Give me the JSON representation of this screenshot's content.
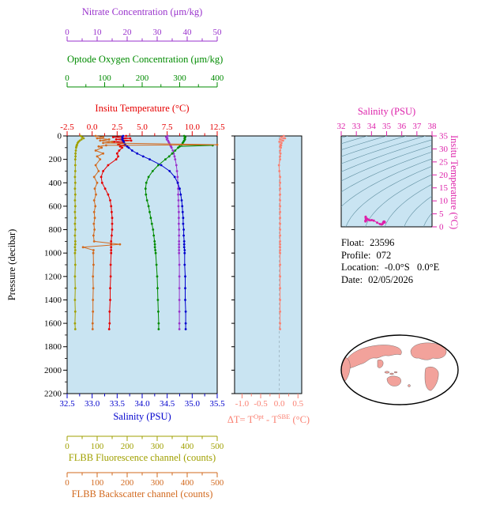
{
  "colors": {
    "panel_bg": "#c9e4f2",
    "contour": "#5f8fa0",
    "map_land": "#f2a29b",
    "map_outline": "#000000"
  },
  "info": {
    "lines": [
      {
        "label": "Float:",
        "value": "23596"
      },
      {
        "label": "Profile:",
        "value": "072"
      },
      {
        "label": "Location:",
        "value": "-0.0°S   0.0°E"
      },
      {
        "label": "Date:",
        "value": "02/05/2026"
      }
    ]
  },
  "chart_data": {
    "type": "line",
    "profile_plot": {
      "ylabel": "Pressure (decibar)",
      "ylim": [
        0,
        2200
      ],
      "pressure_ticks": [
        "0",
        "200",
        "400",
        "600",
        "800",
        "1000",
        "1200",
        "1400",
        "1600",
        "1800",
        "2000",
        "2200"
      ],
      "pressure_levels": [
        0,
        10,
        20,
        30,
        40,
        50,
        60,
        75,
        80,
        90,
        100,
        125,
        150,
        175,
        200,
        250,
        300,
        350,
        400,
        450,
        500,
        550,
        600,
        650,
        700,
        750,
        800,
        850,
        900,
        925,
        950,
        975,
        1000,
        1100,
        1200,
        1300,
        1400,
        1500,
        1600,
        1650
      ],
      "series": [
        {
          "name": "nitrate",
          "label": "Nitrate Concentration (μm/kg)",
          "color": "#9932cc",
          "range": [
            0,
            50
          ],
          "ticks": [
            "0",
            "10",
            "20",
            "30",
            "40",
            "50"
          ],
          "values": [
            33.5,
            33.0,
            33.4,
            33.2,
            33.6,
            33.8,
            34.0,
            34.3,
            34.4,
            34.6,
            34.8,
            35.2,
            35.5,
            35.8,
            36.0,
            36.4,
            36.6,
            36.8,
            36.9,
            37.0,
            37.0,
            37.1,
            37.1,
            37.2,
            37.2,
            37.2,
            37.3,
            37.3,
            37.3,
            37.3,
            37.3,
            37.3,
            37.3,
            37.4,
            37.4,
            37.4,
            37.4,
            37.4,
            37.4,
            37.4
          ]
        },
        {
          "name": "oxygen",
          "label": "Optode Oxygen Concentration (μm/kg)",
          "color": "#008b00",
          "range": [
            0,
            400
          ],
          "ticks": [
            "0",
            "100",
            "200",
            "300",
            "400"
          ],
          "values": [
            312,
            315,
            313,
            314,
            312,
            310,
            308,
            305,
            388,
            300,
            296,
            288,
            280,
            272,
            262,
            243,
            228,
            217,
            211,
            209,
            210,
            213,
            217,
            220,
            223,
            226,
            229,
            231,
            233,
            234,
            234,
            235,
            236,
            238,
            240,
            241,
            242,
            243,
            244,
            244
          ]
        },
        {
          "name": "temperature",
          "label": "Insitu Temperature (°C)",
          "color": "#e60000",
          "range": [
            -2.5,
            12.5
          ],
          "ticks": [
            "-2.5",
            "0.0",
            "2.5",
            "5.0",
            "7.5",
            "10.0",
            "12.5"
          ],
          "values": [
            3.4,
            2.1,
            3.8,
            2.4,
            3.9,
            2.2,
            3.0,
            2.6,
            3.2,
            2.8,
            3.0,
            2.7,
            2.5,
            2.6,
            2.4,
            1.6,
            1.1,
            0.9,
            1.0,
            1.3,
            1.6,
            1.8,
            1.9,
            1.95,
            2.0,
            2.0,
            2.0,
            1.95,
            1.9,
            1.9,
            1.9,
            1.9,
            1.9,
            1.85,
            1.85,
            1.8,
            1.8,
            1.75,
            1.75,
            1.7
          ]
        },
        {
          "name": "salinity",
          "label": "Salinity (PSU)",
          "color": "#0000cd",
          "range": [
            32.5,
            35.5
          ],
          "ticks": [
            "32.5",
            "33.0",
            "33.5",
            "34.0",
            "34.5",
            "35.0",
            "35.5"
          ],
          "values": [
            33.62,
            33.6,
            33.61,
            33.6,
            33.62,
            33.63,
            33.64,
            33.66,
            33.67,
            33.7,
            33.73,
            33.8,
            33.9,
            34.02,
            34.15,
            34.38,
            34.55,
            34.65,
            34.71,
            34.75,
            34.77,
            34.79,
            34.8,
            34.81,
            34.82,
            34.82,
            34.83,
            34.83,
            34.84,
            34.84,
            34.84,
            34.85,
            34.85,
            34.85,
            34.86,
            34.86,
            34.86,
            34.87,
            34.87,
            34.87
          ]
        },
        {
          "name": "fluorescence",
          "label": "FLBB Fluorescence channel (counts)",
          "color": "#a0a000",
          "range": [
            0,
            500
          ],
          "ticks": [
            "0",
            "100",
            "200",
            "300",
            "400",
            "500"
          ],
          "values": [
            45,
            50,
            55,
            48,
            42,
            38,
            35,
            33,
            32,
            31,
            30,
            29,
            28,
            28,
            27,
            27,
            27,
            26,
            27,
            26,
            27,
            26,
            27,
            26,
            27,
            26,
            27,
            26,
            27,
            27,
            26,
            27,
            26,
            27,
            26,
            27,
            26,
            27,
            26,
            27
          ]
        },
        {
          "name": "backscatter",
          "label": "FLBB Backscatter channel (counts)",
          "color": "#d2691e",
          "range": [
            0,
            500
          ],
          "ticks": [
            "0",
            "100",
            "200",
            "300",
            "400",
            "500"
          ],
          "values": [
            95,
            120,
            100,
            140,
            110,
            150,
            120,
            500,
            130,
            105,
            115,
            95,
            120,
            100,
            110,
            95,
            105,
            90,
            100,
            92,
            96,
            90,
            94,
            90,
            92,
            89,
            91,
            88,
            90,
            176,
            53,
            88,
            87,
            88,
            86,
            87,
            86,
            86,
            85,
            85
          ]
        }
      ]
    },
    "delta_plot": {
      "label_parts": {
        "p1": "ΔT= T",
        "sup1": "Opt",
        "p2": " - T",
        "sup2": "SBE",
        "p3": " (°C)"
      },
      "color": "#fa8072",
      "xlim": [
        -1.2,
        0.6
      ],
      "ticks": {
        "values": [
          -1.0,
          -0.5,
          0.0,
          0.5
        ],
        "labels": [
          "-1.0",
          "-0.5",
          "0.0",
          "0.5"
        ]
      },
      "values": [
        0.12,
        0.05,
        0.15,
        0.02,
        0.1,
        0.0,
        0.06,
        0.03,
        0.05,
        0.02,
        0.04,
        0.02,
        0.03,
        0.02,
        0.02,
        -0.01,
        0.0,
        0.02,
        0.02,
        0.02,
        0.02,
        0.02,
        0.02,
        0.02,
        0.02,
        0.02,
        0.02,
        0.02,
        0.02,
        0.02,
        0.02,
        0.02,
        0.02,
        0.02,
        0.02,
        0.02,
        0.02,
        0.02,
        0.02,
        0.02
      ]
    },
    "ts_plot": {
      "xlabel": "Salinity (PSU)",
      "ylabel": "Insitu Temperature (°C)",
      "color": "#dd22aa",
      "xlim": [
        32,
        38
      ],
      "ylim": [
        0,
        35
      ],
      "x_ticks": [
        "32",
        "33",
        "34",
        "35",
        "36",
        "37",
        "38"
      ],
      "y_ticks": [
        "0",
        "5",
        "10",
        "15",
        "20",
        "25",
        "30",
        "35"
      ],
      "sigma_contours": [
        17,
        18,
        19,
        20,
        21,
        22,
        23,
        24,
        25,
        26,
        27,
        28,
        29,
        30
      ]
    }
  }
}
